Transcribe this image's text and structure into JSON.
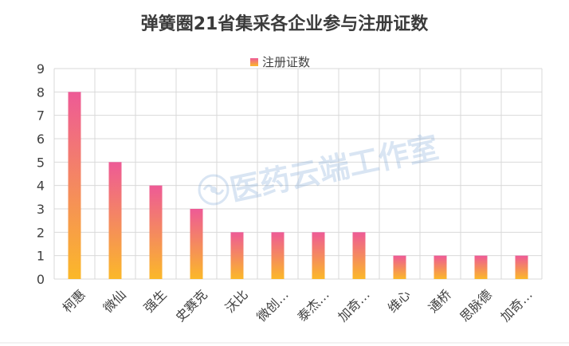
{
  "chart_data": {
    "type": "bar",
    "title": "弹簧圈21省集采各企业参与注册证数",
    "categories": [
      "柯惠",
      "微仙",
      "强生",
      "史赛克",
      "沃比",
      "微创…",
      "泰杰…",
      "加奇…",
      "维心",
      "通桥",
      "思脉德",
      "加奇…"
    ],
    "series": [
      {
        "name": "注册证数",
        "values": [
          8,
          5,
          4,
          3,
          2,
          2,
          2,
          2,
          1,
          1,
          1,
          1
        ]
      }
    ],
    "ylim": [
      0,
      9
    ],
    "yticks": [
      "0",
      "1",
      "2",
      "3",
      "4",
      "5",
      "6",
      "7",
      "8",
      "9"
    ],
    "xlabel": "",
    "ylabel": "",
    "grid": true,
    "legend_position": "top",
    "colors": {
      "bar_top": "#ee5a96",
      "bar_bottom": "#fbb829",
      "grid": "#d9d9d9",
      "text": "#404040",
      "title": "#3b3b3b"
    }
  },
  "watermark": {
    "text": "医药云端工作室"
  }
}
